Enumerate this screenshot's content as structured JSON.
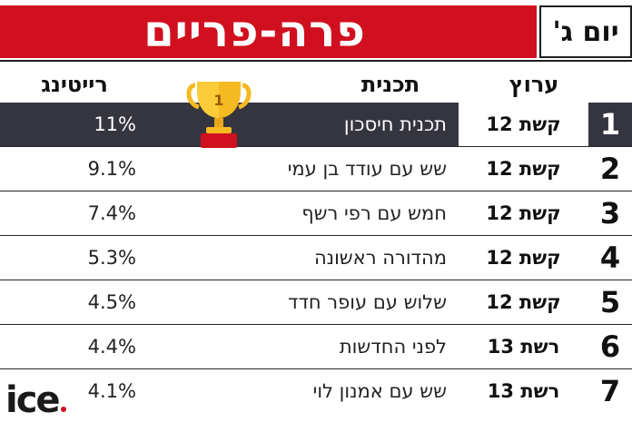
{
  "header": {
    "title": "פרה-פריים",
    "day": "יום ג'"
  },
  "columns": {
    "network": "ערוץ",
    "program": "תכנית",
    "rating": "רייטינג"
  },
  "rows": [
    {
      "rank": "1",
      "network": "קשת 12",
      "program": "תכנית חיסכון",
      "rating": "11%"
    },
    {
      "rank": "2",
      "network": "קשת 12",
      "program": "שש עם עודד בן עמי",
      "rating": "9.1%"
    },
    {
      "rank": "3",
      "network": "קשת 12",
      "program": "חמש עם רפי רשף",
      "rating": "7.4%"
    },
    {
      "rank": "4",
      "network": "קשת 12",
      "program": "מהדורה ראשונה",
      "rating": "5.3%"
    },
    {
      "rank": "5",
      "network": "קשת 12",
      "program": "שלוש עם עופר חדד",
      "rating": "4.5%"
    },
    {
      "rank": "6",
      "network": "רשת 13",
      "program": "לפני החדשות",
      "rating": "4.4%"
    },
    {
      "rank": "7",
      "network": "רשת 13",
      "program": "שש עם אמנון לוי",
      "rating": "4.1%"
    }
  ],
  "trophy_label": "1",
  "logo_text": "ice",
  "colors": {
    "brand_red": "#d0101f",
    "highlight_row": "#34353f",
    "trophy_gold": "#f5b921"
  }
}
